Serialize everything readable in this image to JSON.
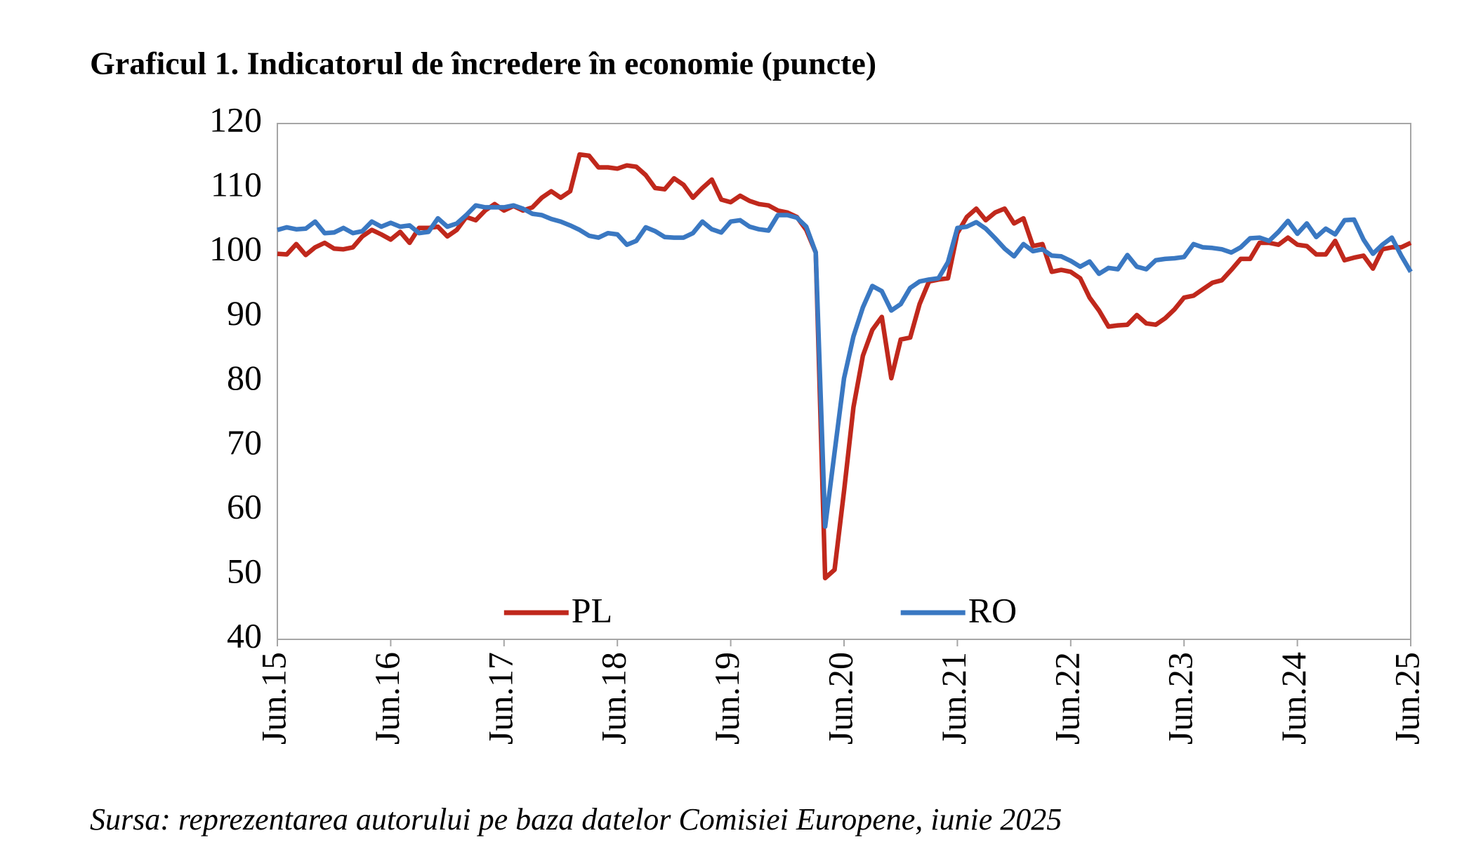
{
  "chart_data": {
    "type": "line",
    "title": "Graficul 1. Indicatorul de încredere în economie (puncte)",
    "source": "Sursa: reprezentarea autorului pe baza datelor Comisiei Europene, iunie 2025",
    "categories": [
      "Jun.15",
      null,
      null,
      null,
      null,
      null,
      null,
      null,
      null,
      null,
      null,
      null,
      "Jun.16",
      null,
      null,
      null,
      null,
      null,
      null,
      null,
      null,
      null,
      null,
      null,
      "Jun.17",
      null,
      null,
      null,
      null,
      null,
      null,
      null,
      null,
      null,
      null,
      null,
      "Jun.18",
      null,
      null,
      null,
      null,
      null,
      null,
      null,
      null,
      null,
      null,
      null,
      "Jun.19",
      null,
      null,
      null,
      null,
      null,
      null,
      null,
      null,
      null,
      null,
      null,
      "Jun.20",
      null,
      null,
      null,
      null,
      null,
      null,
      null,
      null,
      null,
      null,
      null,
      "Jun.21",
      null,
      null,
      null,
      null,
      null,
      null,
      null,
      null,
      null,
      null,
      null,
      "Jun.22",
      null,
      null,
      null,
      null,
      null,
      null,
      null,
      null,
      null,
      null,
      null,
      "Jun.23",
      null,
      null,
      null,
      null,
      null,
      null,
      null,
      null,
      null,
      null,
      null,
      "Jun.24",
      null,
      null,
      null,
      null,
      null,
      null,
      null,
      null,
      null,
      null,
      null,
      "Jun.25"
    ],
    "series": [
      {
        "name": "PL",
        "color": "#c0281c",
        "values": [
          99.8,
          99.7,
          101.3,
          99.6,
          100.8,
          101.5,
          100.6,
          100.5,
          100.8,
          102.5,
          103.5,
          102.8,
          102.0,
          103.2,
          101.5,
          103.8,
          103.8,
          104.0,
          102.5,
          103.5,
          105.5,
          105.0,
          106.5,
          107.5,
          106.5,
          107.2,
          106.5,
          107.0,
          108.5,
          109.5,
          108.5,
          109.5,
          115.2,
          115.0,
          113.2,
          113.2,
          113.0,
          113.5,
          113.3,
          112.0,
          110.0,
          109.8,
          111.5,
          110.5,
          108.5,
          110.0,
          111.3,
          108.2,
          107.8,
          108.8,
          108.0,
          107.5,
          107.3,
          106.5,
          106.2,
          105.5,
          103.5,
          100.0,
          49.5,
          50.8,
          63.0,
          76.0,
          84.0,
          88.0,
          90.0,
          80.5,
          86.5,
          86.8,
          92.0,
          95.5,
          95.8,
          96.0,
          103.0,
          105.5,
          106.8,
          105.0,
          106.2,
          106.8,
          104.5,
          105.3,
          101.0,
          101.3,
          97.0,
          97.3,
          97.0,
          96.0,
          93.0,
          91.0,
          88.5,
          88.7,
          88.8,
          90.3,
          89.0,
          88.8,
          89.8,
          91.2,
          93.0,
          93.3,
          94.3,
          95.3,
          95.7,
          97.3,
          99.0,
          99.0,
          101.5,
          101.5,
          101.2,
          102.3,
          101.2,
          101.0,
          99.7,
          99.7,
          101.8,
          98.8,
          99.2,
          99.5,
          97.5,
          100.5,
          100.8,
          100.8,
          101.5
        ]
      },
      {
        "name": "RO",
        "color": "#3a78c2",
        "values": [
          103.5,
          103.9,
          103.6,
          103.7,
          104.8,
          103.0,
          103.1,
          103.8,
          103.0,
          103.3,
          104.8,
          104.0,
          104.6,
          104.0,
          104.2,
          103.0,
          103.2,
          105.3,
          104.0,
          104.5,
          105.8,
          107.3,
          107.0,
          107.0,
          107.0,
          107.3,
          106.8,
          106.0,
          105.8,
          105.2,
          104.8,
          104.2,
          103.5,
          102.6,
          102.3,
          103.0,
          102.8,
          101.2,
          101.8,
          103.9,
          103.3,
          102.4,
          102.3,
          102.3,
          103.0,
          104.8,
          103.6,
          103.1,
          104.8,
          105.0,
          104.0,
          103.6,
          103.4,
          105.8,
          105.8,
          105.4,
          104.0,
          100.0,
          57.5,
          69.0,
          80.5,
          87.0,
          91.5,
          94.8,
          94.0,
          91.0,
          92.0,
          94.5,
          95.5,
          95.8,
          96.0,
          98.5,
          103.8,
          104.0,
          104.7,
          103.7,
          102.2,
          100.6,
          99.4,
          101.3,
          100.2,
          100.5,
          99.5,
          99.4,
          98.7,
          97.8,
          98.6,
          96.7,
          97.6,
          97.4,
          99.6,
          97.8,
          97.4,
          98.8,
          99.0,
          99.1,
          99.3,
          101.3,
          100.8,
          100.7,
          100.5,
          100.0,
          100.8,
          102.2,
          102.3,
          101.8,
          103.2,
          104.9,
          102.9,
          104.5,
          102.4,
          103.7,
          102.8,
          105.0,
          105.1,
          102.0,
          99.8,
          101.2,
          102.3,
          99.5,
          97.0
        ]
      }
    ],
    "ylim": [
      40,
      120
    ],
    "yticks": [
      40,
      50,
      60,
      70,
      80,
      90,
      100,
      110,
      120
    ],
    "grid": false,
    "legend": "bottom"
  }
}
